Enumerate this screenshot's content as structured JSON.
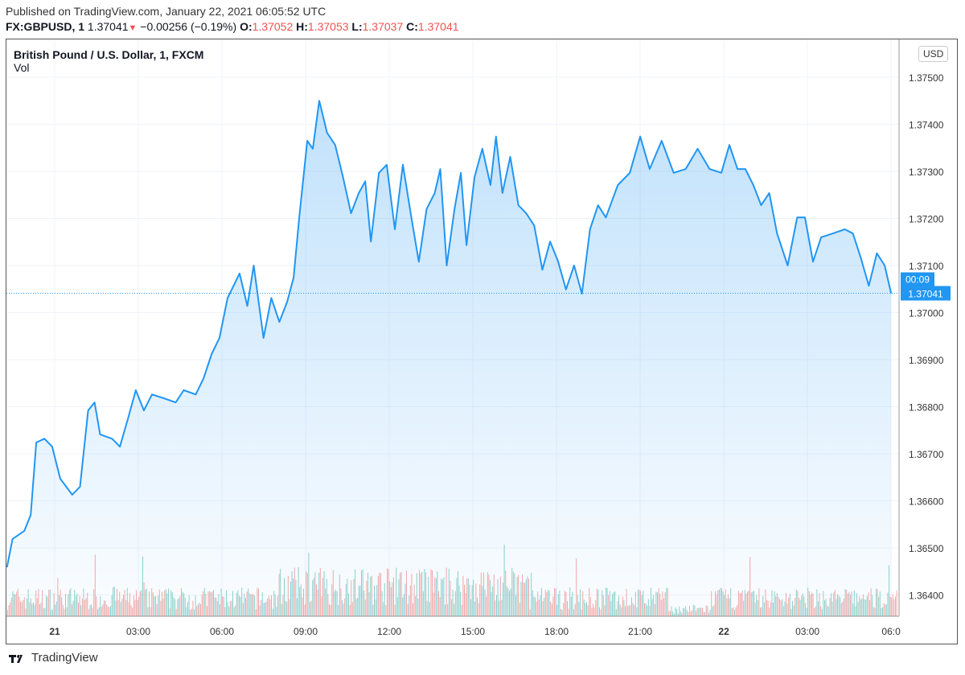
{
  "header": {
    "published": "Published on TradingView.com, January 22, 2021 06:05:52 UTC",
    "symbol": "FX:GBPUSD, 1",
    "last": "1.37041",
    "change": "−0.00256 (−0.19%)",
    "o_label": "O:",
    "o": "1.37052",
    "h_label": "H:",
    "h": "1.37053",
    "l_label": "L:",
    "l": "1.37037",
    "c_label": "C:",
    "c": "1.37041"
  },
  "legend": {
    "title": "British Pound / U.S. Dollar, 1, FXCM",
    "vol": "Vol"
  },
  "currency": "USD",
  "logo": "TradingView",
  "colors": {
    "line": "#2196f3",
    "up": "#26a69a",
    "down": "#ef5350"
  },
  "chart_data": {
    "type": "area",
    "title": "British Pound / U.S. Dollar, 1, FXCM",
    "ylabel": "USD",
    "ylim": [
      1.3635,
      1.3758
    ],
    "y_ticks": [
      "1.37500",
      "1.37400",
      "1.37300",
      "1.37200",
      "1.37100",
      "1.37000",
      "1.36900",
      "1.36800",
      "1.36700",
      "1.36600",
      "1.36500",
      "1.36400"
    ],
    "y_tick_values": [
      1.375,
      1.374,
      1.373,
      1.372,
      1.371,
      1.37,
      1.369,
      1.368,
      1.367,
      1.366,
      1.365,
      1.364
    ],
    "x_unit": "hours since Jan 21 00:00 UTC",
    "xlim": [
      -1.73,
      31.0
    ],
    "x_ticks": [
      {
        "t": 0,
        "label": "21",
        "bold": true
      },
      {
        "t": 3,
        "label": "03:00"
      },
      {
        "t": 6,
        "label": "06:00"
      },
      {
        "t": 9,
        "label": "09:00"
      },
      {
        "t": 12,
        "label": "12:00"
      },
      {
        "t": 15,
        "label": "15:00"
      },
      {
        "t": 18,
        "label": "18:00"
      },
      {
        "t": 21,
        "label": "21:00"
      },
      {
        "t": 24,
        "label": "22",
        "bold": true
      },
      {
        "t": 27,
        "label": "03:00"
      },
      {
        "t": 30,
        "label": "06:0"
      }
    ],
    "last_price": "1.37041",
    "last_value": 1.37041,
    "countdown": "00:09",
    "series": [
      {
        "name": "GBPUSD",
        "x": [
          -1.71,
          -1.51,
          -1.09,
          -0.86,
          -0.66,
          -0.37,
          -0.09,
          0.2,
          0.63,
          0.91,
          1.2,
          1.43,
          1.63,
          2.06,
          2.34,
          2.63,
          2.91,
          3.2,
          3.49,
          3.91,
          4.34,
          4.63,
          5.06,
          5.34,
          5.63,
          5.91,
          6.2,
          6.63,
          6.91,
          7.14,
          7.49,
          7.77,
          8.06,
          8.34,
          8.57,
          8.77,
          9.06,
          9.26,
          9.49,
          9.77,
          10.06,
          10.34,
          10.63,
          10.91,
          11.14,
          11.34,
          11.63,
          11.91,
          12.2,
          12.49,
          12.77,
          13.06,
          13.34,
          13.63,
          13.83,
          14.06,
          14.34,
          14.57,
          14.77,
          15.06,
          15.34,
          15.63,
          15.83,
          16.06,
          16.34,
          16.63,
          16.91,
          17.2,
          17.49,
          17.77,
          18.06,
          18.34,
          18.63,
          18.91,
          19.2,
          19.49,
          19.77,
          20.2,
          20.63,
          21.0,
          21.34,
          21.77,
          22.2,
          22.63,
          23.06,
          23.49,
          23.91,
          24.2,
          24.49,
          24.77,
          25.06,
          25.34,
          25.63,
          25.91,
          26.29,
          26.63,
          26.91,
          27.2,
          27.49,
          27.91,
          28.34,
          28.63,
          28.91,
          29.2,
          29.49,
          29.77,
          30.0
        ],
        "y": [
          1.36459,
          1.36519,
          1.36536,
          1.3657,
          1.36724,
          1.36732,
          1.36715,
          1.36647,
          1.36613,
          1.3663,
          1.36792,
          1.36809,
          1.36741,
          1.36732,
          1.36715,
          1.36775,
          1.36835,
          1.36792,
          1.36826,
          1.36818,
          1.36809,
          1.36835,
          1.36826,
          1.3686,
          1.36912,
          1.36946,
          1.37031,
          1.37083,
          1.37014,
          1.371,
          1.36946,
          1.37031,
          1.3698,
          1.37023,
          1.37074,
          1.37202,
          1.37365,
          1.37348,
          1.3745,
          1.37382,
          1.37356,
          1.37288,
          1.37211,
          1.37254,
          1.37279,
          1.37151,
          1.37297,
          1.37314,
          1.37177,
          1.37314,
          1.37211,
          1.37108,
          1.3722,
          1.37254,
          1.37305,
          1.371,
          1.3722,
          1.37297,
          1.37143,
          1.37288,
          1.37348,
          1.37271,
          1.37374,
          1.37254,
          1.37331,
          1.37228,
          1.37211,
          1.37185,
          1.37091,
          1.37151,
          1.37108,
          1.37049,
          1.371,
          1.3704,
          1.37177,
          1.37228,
          1.37202,
          1.37271,
          1.37297,
          1.37374,
          1.37305,
          1.37365,
          1.37297,
          1.37305,
          1.37348,
          1.37305,
          1.37297,
          1.37356,
          1.37305,
          1.37305,
          1.37271,
          1.37228,
          1.37254,
          1.37168,
          1.371,
          1.37202,
          1.37202,
          1.37108,
          1.3716,
          1.37168,
          1.37177,
          1.37168,
          1.37117,
          1.37057,
          1.37126,
          1.371,
          1.37041
        ]
      }
    ],
    "volume_note": "Vol"
  }
}
